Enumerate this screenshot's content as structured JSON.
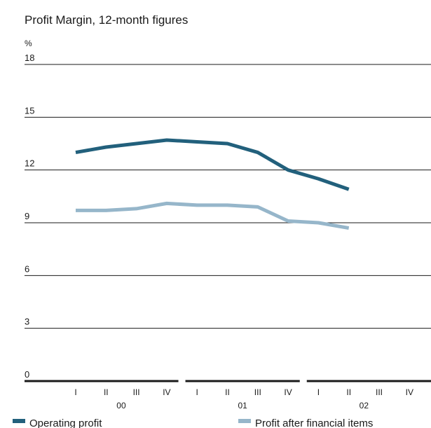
{
  "chart_data": {
    "type": "line",
    "title": "Profit Margin, 12-month figures",
    "y_label": "%",
    "categories": [
      "I",
      "II",
      "III",
      "IV",
      "I",
      "II",
      "III",
      "IV",
      "I",
      "II",
      "III",
      "IV"
    ],
    "groups": [
      "00",
      "01",
      "02"
    ],
    "series": [
      {
        "name": "Operating profit",
        "color": "#22607c",
        "values": [
          13.0,
          13.3,
          13.5,
          13.7,
          13.6,
          13.5,
          13.0,
          12.0,
          11.5,
          10.9,
          null,
          null
        ]
      },
      {
        "name": "Profit after financial items",
        "color": "#96b6ca",
        "values": [
          9.7,
          9.7,
          9.8,
          10.1,
          10.0,
          10.0,
          9.9,
          9.1,
          9.0,
          8.7,
          null,
          null
        ]
      }
    ],
    "ylim": [
      0,
      18
    ],
    "yticks": [
      0,
      3,
      6,
      9,
      12,
      15,
      18
    ],
    "grid": true
  }
}
